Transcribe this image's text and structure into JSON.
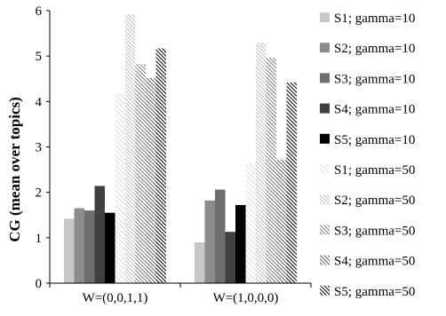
{
  "chart_data": {
    "type": "bar",
    "ylabel": "CG (mean over topics)",
    "ylim": [
      0,
      6
    ],
    "yticks": [
      0,
      1,
      2,
      3,
      4,
      5,
      6
    ],
    "grid": false,
    "legend_position": "right",
    "categories": [
      "W=(0,0,1,1)",
      "W=(1,0,0,0)"
    ],
    "series": [
      {
        "name": "S1; gamma=10",
        "values": [
          1.42,
          0.9
        ],
        "color": "#c8c8c8",
        "pattern": "solid"
      },
      {
        "name": "S2; gamma=10",
        "values": [
          1.65,
          1.82
        ],
        "color": "#8c8c8c",
        "pattern": "solid"
      },
      {
        "name": "S3; gamma=10",
        "values": [
          1.6,
          2.06
        ],
        "color": "#6e6e6e",
        "pattern": "solid"
      },
      {
        "name": "S4; gamma=10",
        "values": [
          2.14,
          1.13
        ],
        "color": "#404040",
        "pattern": "solid"
      },
      {
        "name": "S5; gamma=10",
        "values": [
          1.55,
          1.72
        ],
        "color": "#000000",
        "pattern": "solid"
      },
      {
        "name": "S1; gamma=50",
        "values": [
          4.18,
          2.65
        ],
        "color": "#bdbdbd",
        "pattern": "hatch-light"
      },
      {
        "name": "S2; gamma=50",
        "values": [
          5.92,
          5.3
        ],
        "color": "#9a9a9a",
        "pattern": "hatch-medium"
      },
      {
        "name": "S3; gamma=50",
        "values": [
          4.82,
          4.96
        ],
        "color": "#5a5a5a",
        "pattern": "hatch-dense"
      },
      {
        "name": "S4; gamma=50",
        "values": [
          4.52,
          2.72
        ],
        "color": "#3a3a3a",
        "pattern": "hatch-dense"
      },
      {
        "name": "S5; gamma=50",
        "values": [
          5.17,
          4.42
        ],
        "color": "#000000",
        "pattern": "hatch-dark"
      }
    ]
  }
}
